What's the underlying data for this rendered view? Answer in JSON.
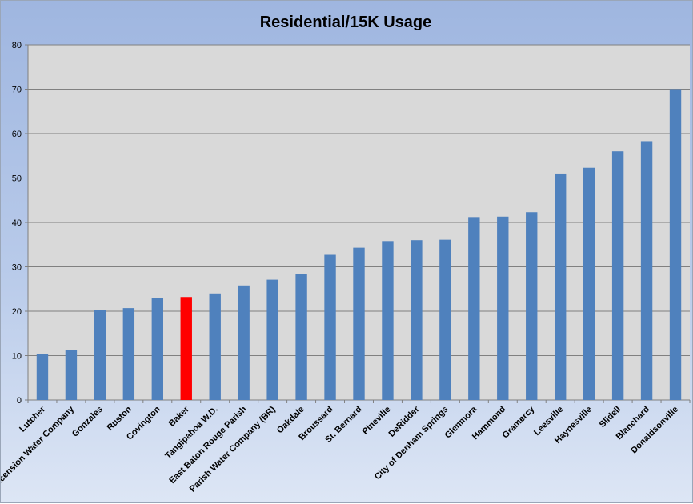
{
  "chart_data": {
    "type": "bar",
    "title": "Residential/15K Usage",
    "xlabel": "",
    "ylabel": "",
    "ylim": [
      0,
      80
    ],
    "yticks": [
      0,
      10,
      20,
      30,
      40,
      50,
      60,
      70,
      80
    ],
    "grid": true,
    "legend": "none",
    "categories": [
      "Lutcher",
      "Ascension Water Company",
      "Gonzales",
      "Ruston",
      "Covington",
      "Baker",
      "Tangipahoa W.D.",
      "East Baton Rouge Parish",
      "Parish Water Company (BR)",
      "Oakdale",
      "Broussard",
      "St. Bernard",
      "Pineville",
      "DeRidder",
      "City of Denham Springs",
      "Glenmora",
      "Hammond",
      "Gramercy",
      "Leesville",
      "Haynesville",
      "Slidell",
      "Blanchard",
      "Donaldsonville"
    ],
    "values": [
      10.3,
      11.2,
      20.2,
      20.7,
      22.9,
      23.2,
      24.0,
      25.8,
      27.1,
      28.4,
      32.7,
      34.3,
      35.8,
      36.0,
      36.1,
      41.2,
      41.3,
      42.3,
      51.0,
      52.3,
      56.0,
      58.3,
      70.0
    ],
    "highlight_category": "Baker",
    "colors": {
      "bar": "#4f81bd",
      "highlight": "#ff0000",
      "plot_background": "#d9d9d9",
      "gridline": "#808080"
    }
  }
}
